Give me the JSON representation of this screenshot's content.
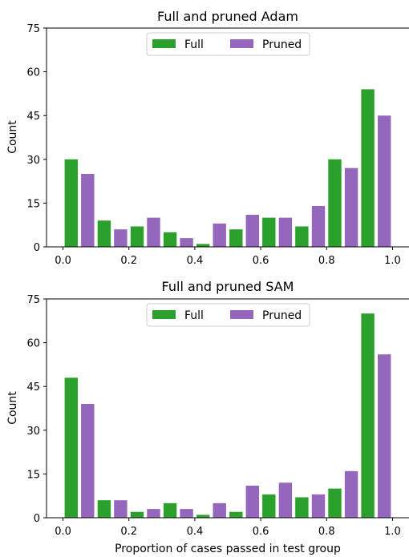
{
  "chart_data": [
    {
      "type": "bar",
      "title": "Full and pruned Adam",
      "xlabel": "",
      "ylabel": "Count",
      "xlim": [
        -0.05,
        1.05
      ],
      "ylim": [
        0,
        75
      ],
      "xticks": [
        "0.0",
        "0.2",
        "0.4",
        "0.6",
        "0.8",
        "1.0"
      ],
      "yticks": [
        "0",
        "15",
        "30",
        "45",
        "60",
        "75"
      ],
      "bin_centers": [
        0.05,
        0.15,
        0.25,
        0.35,
        0.45,
        0.55,
        0.65,
        0.75,
        0.85,
        0.95
      ],
      "series": [
        {
          "name": "Full",
          "color": "#2ca02c",
          "values": [
            30,
            9,
            7,
            5,
            1,
            6,
            10,
            7,
            30,
            54
          ]
        },
        {
          "name": "Pruned",
          "color": "#9467bd",
          "values": [
            25,
            6,
            10,
            3,
            8,
            11,
            10,
            14,
            27,
            45
          ]
        }
      ],
      "legend": "upper center",
      "grid": false
    },
    {
      "type": "bar",
      "title": "Full and pruned SAM",
      "xlabel": "Proportion of cases passed in test group",
      "ylabel": "Count",
      "xlim": [
        -0.05,
        1.05
      ],
      "ylim": [
        0,
        75
      ],
      "xticks": [
        "0.0",
        "0.2",
        "0.4",
        "0.6",
        "0.8",
        "1.0"
      ],
      "yticks": [
        "0",
        "15",
        "30",
        "45",
        "60",
        "75"
      ],
      "bin_centers": [
        0.05,
        0.15,
        0.25,
        0.35,
        0.45,
        0.55,
        0.65,
        0.75,
        0.85,
        0.95
      ],
      "series": [
        {
          "name": "Full",
          "color": "#2ca02c",
          "values": [
            48,
            6,
            2,
            5,
            1,
            2,
            8,
            7,
            10,
            70
          ]
        },
        {
          "name": "Pruned",
          "color": "#9467bd",
          "values": [
            39,
            6,
            3,
            3,
            5,
            11,
            12,
            8,
            16,
            56
          ]
        }
      ],
      "legend": "upper center",
      "grid": false
    }
  ]
}
